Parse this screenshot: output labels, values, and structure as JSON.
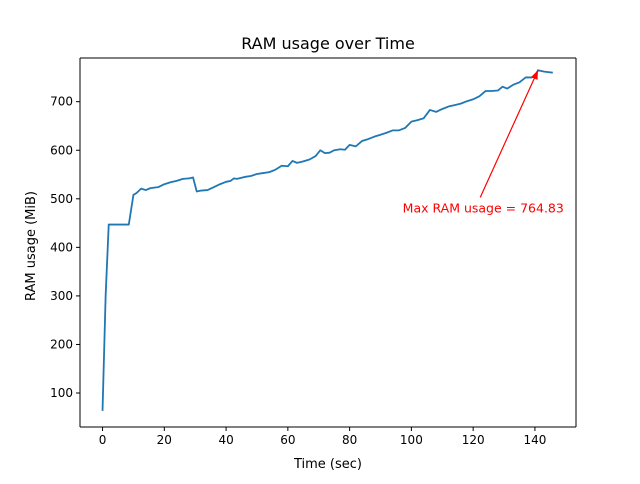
{
  "chart_data": {
    "type": "line",
    "title": "RAM usage over Time",
    "xlabel": "Time (sec)",
    "ylabel": "RAM usage (MiB)",
    "xlim": [
      -7.3,
      153.3
    ],
    "ylim": [
      30,
      790
    ],
    "x_ticks": [
      0,
      20,
      40,
      60,
      80,
      100,
      120,
      140
    ],
    "y_ticks": [
      100,
      200,
      300,
      400,
      500,
      600,
      700
    ],
    "grid": false,
    "series_color": "#1f77b4",
    "series": [
      {
        "points": [
          [
            0,
            65
          ],
          [
            1,
            300
          ],
          [
            2,
            447
          ],
          [
            3,
            447
          ],
          [
            5,
            447
          ],
          [
            7,
            447
          ],
          [
            8.5,
            447
          ],
          [
            10,
            508
          ],
          [
            11,
            512
          ],
          [
            12.5,
            521
          ],
          [
            14,
            518
          ],
          [
            15.5,
            522
          ],
          [
            18,
            524
          ],
          [
            20,
            530
          ],
          [
            22,
            534
          ],
          [
            24,
            537
          ],
          [
            26,
            541
          ],
          [
            28,
            542
          ],
          [
            29.3,
            544
          ],
          [
            30.5,
            515
          ],
          [
            32,
            517
          ],
          [
            34,
            518
          ],
          [
            36,
            524
          ],
          [
            38,
            530
          ],
          [
            40,
            535
          ],
          [
            41.5,
            537
          ],
          [
            42.5,
            542
          ],
          [
            43.5,
            541
          ],
          [
            46,
            545
          ],
          [
            48,
            547
          ],
          [
            50,
            551
          ],
          [
            52,
            553
          ],
          [
            54,
            555
          ],
          [
            56,
            560
          ],
          [
            58,
            568
          ],
          [
            60,
            567
          ],
          [
            61.5,
            578
          ],
          [
            63,
            574
          ],
          [
            65,
            577
          ],
          [
            67,
            581
          ],
          [
            69,
            588
          ],
          [
            70.5,
            600
          ],
          [
            72,
            594
          ],
          [
            73.5,
            595
          ],
          [
            75,
            600
          ],
          [
            77,
            602
          ],
          [
            78.5,
            601
          ],
          [
            80,
            611
          ],
          [
            82,
            608
          ],
          [
            84,
            619
          ],
          [
            86,
            623
          ],
          [
            88,
            628
          ],
          [
            90,
            632
          ],
          [
            92,
            636
          ],
          [
            94,
            641
          ],
          [
            96,
            641
          ],
          [
            98,
            646
          ],
          [
            100,
            659
          ],
          [
            102,
            662
          ],
          [
            104,
            666
          ],
          [
            106,
            683
          ],
          [
            108,
            679
          ],
          [
            110,
            685
          ],
          [
            112,
            690
          ],
          [
            114,
            693
          ],
          [
            116,
            696
          ],
          [
            118,
            701
          ],
          [
            120,
            705
          ],
          [
            122,
            711
          ],
          [
            124,
            722
          ],
          [
            126,
            722
          ],
          [
            128,
            723
          ],
          [
            129.5,
            731
          ],
          [
            131,
            727
          ],
          [
            133,
            735
          ],
          [
            135,
            740
          ],
          [
            137,
            750
          ],
          [
            139,
            750
          ],
          [
            140,
            752
          ],
          [
            141,
            764.83
          ],
          [
            143,
            762
          ],
          [
            145.5,
            760
          ]
        ]
      }
    ],
    "annotation": {
      "text": "Max RAM usage = 764.83",
      "point": [
        141,
        764.83
      ],
      "text_anchor_point": [
        122.3,
        503
      ],
      "color": "#ff0000"
    }
  }
}
